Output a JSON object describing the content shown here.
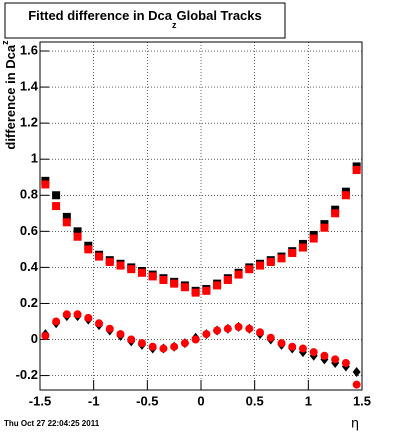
{
  "chart_data": {
    "type": "scatter",
    "title": "Fitted difference in Dca",
    "title_subscript": "z",
    "title_rest": "Global Tracks",
    "y_label": "difference in Dca",
    "y_label_subscript": "z",
    "x_label": "η",
    "footer": "Thu Oct 27 22:04:25 2011",
    "xlim": [
      -1.5,
      1.5
    ],
    "xticks": [
      -1.5,
      -1,
      -0.5,
      0,
      0.5,
      1,
      1.5
    ],
    "ylim": [
      -0.28,
      1.65
    ],
    "yticks": [
      -0.2,
      0,
      0.2,
      0.4,
      0.6,
      0.8,
      1,
      1.2,
      1.4,
      1.6
    ],
    "grid": true,
    "x": [
      -1.45,
      -1.35,
      -1.25,
      -1.15,
      -1.05,
      -0.95,
      -0.85,
      -0.75,
      -0.65,
      -0.55,
      -0.45,
      -0.35,
      -0.25,
      -0.15,
      -0.05,
      0.05,
      0.15,
      0.25,
      0.35,
      0.45,
      0.55,
      0.65,
      0.75,
      0.85,
      0.95,
      1.05,
      1.15,
      1.25,
      1.35,
      1.45
    ],
    "series": [
      {
        "color": "#000000",
        "marker": "square",
        "values": [
          0.88,
          0.8,
          0.68,
          0.6,
          0.52,
          0.47,
          0.44,
          0.42,
          0.4,
          0.38,
          0.36,
          0.34,
          0.32,
          0.3,
          0.27,
          0.28,
          0.31,
          0.34,
          0.37,
          0.4,
          0.42,
          0.44,
          0.46,
          0.49,
          0.53,
          0.58,
          0.64,
          0.72,
          0.82,
          0.96
        ]
      },
      {
        "color": "#ff0000",
        "marker": "square",
        "values": [
          0.86,
          0.74,
          0.65,
          0.57,
          0.5,
          0.46,
          0.43,
          0.41,
          0.39,
          0.37,
          0.35,
          0.33,
          0.31,
          0.29,
          0.26,
          0.27,
          0.3,
          0.33,
          0.36,
          0.39,
          0.41,
          0.43,
          0.45,
          0.48,
          0.51,
          0.56,
          0.62,
          0.7,
          0.8,
          0.94
        ]
      },
      {
        "color": "#000000",
        "marker": "diamond",
        "values": [
          0.03,
          0.09,
          0.13,
          0.13,
          0.11,
          0.08,
          0.05,
          0.02,
          -0.01,
          -0.03,
          -0.05,
          -0.05,
          -0.04,
          -0.02,
          0.01,
          0.03,
          0.05,
          0.06,
          0.07,
          0.06,
          0.03,
          0.0,
          -0.03,
          -0.05,
          -0.07,
          -0.09,
          -0.11,
          -0.13,
          -0.15,
          -0.18
        ]
      },
      {
        "color": "#ff0000",
        "marker": "circle",
        "values": [
          0.02,
          0.1,
          0.14,
          0.14,
          0.12,
          0.09,
          0.06,
          0.03,
          0.0,
          -0.02,
          -0.04,
          -0.05,
          -0.04,
          -0.02,
          0.0,
          0.03,
          0.05,
          0.06,
          0.07,
          0.06,
          0.04,
          0.01,
          -0.02,
          -0.04,
          -0.05,
          -0.07,
          -0.09,
          -0.11,
          -0.13,
          -0.25
        ]
      }
    ]
  }
}
